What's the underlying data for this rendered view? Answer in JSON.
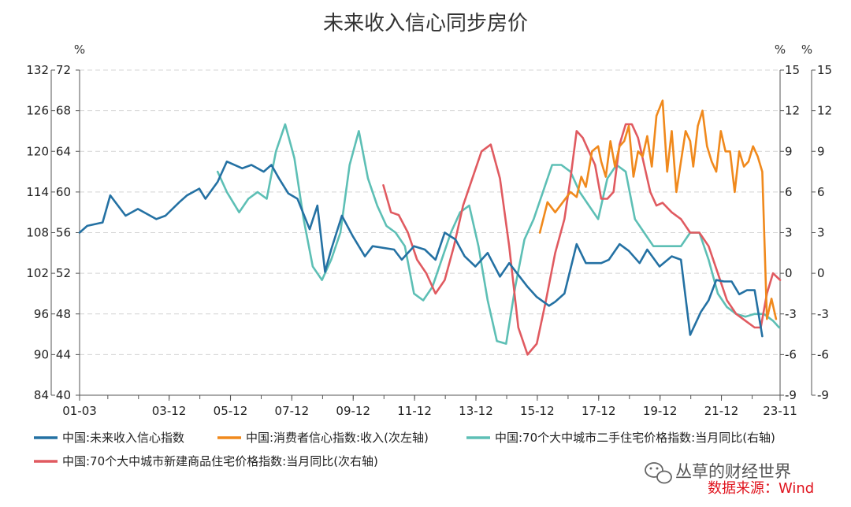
{
  "chart_data": {
    "type": "line",
    "title": "未来收入信心同步房价",
    "units": {
      "left_outer": "%",
      "right_inner": "%",
      "right_outer": "%"
    },
    "axes": {
      "left_outer": {
        "ticks": [
          "132",
          "126",
          "120",
          "114",
          "108",
          "102",
          "96",
          "90",
          "84"
        ],
        "range": [
          84,
          132
        ]
      },
      "left_inner": {
        "ticks": [
          "72",
          "68",
          "64",
          "60",
          "56",
          "52",
          "48",
          "44",
          "40"
        ],
        "range": [
          40,
          72
        ]
      },
      "right_inner": {
        "ticks": [
          "15",
          "12",
          "9",
          "6",
          "3",
          "0",
          "-3",
          "-6",
          "-9"
        ],
        "range": [
          -9,
          15
        ]
      },
      "right_outer": {
        "ticks": [
          "15",
          "12",
          "9",
          "6",
          "3",
          "0",
          "-3",
          "-6",
          "-9"
        ],
        "range": [
          -9,
          15
        ]
      }
    },
    "x_ticks": [
      "01-03",
      "03-12",
      "05-12",
      "07-12",
      "09-12",
      "11-12",
      "13-12",
      "15-12",
      "17-12",
      "19-12",
      "21-12",
      "23-11"
    ],
    "x_range": [
      2001.0,
      2023.83
    ],
    "grid": true,
    "legend_position": "bottom",
    "series": [
      {
        "name": "中国:未来收入信心指数",
        "color": "#2471a3",
        "axis": "left_outer",
        "x": [
          2001.0,
          2001.25,
          2001.75,
          2002.0,
          2002.5,
          2002.9,
          2003.5,
          2003.8,
          2004.25,
          2004.5,
          2004.9,
          2005.1,
          2005.5,
          2005.8,
          2006.3,
          2006.6,
          2007.0,
          2007.25,
          2007.5,
          2007.8,
          2008.1,
          2008.5,
          2008.75,
          2009.0,
          2009.2,
          2009.55,
          2009.9,
          2010.3,
          2010.55,
          2011.25,
          2011.5,
          2011.9,
          2012.25,
          2012.6,
          2012.9,
          2013.25,
          2013.55,
          2013.9,
          2014.3,
          2014.7,
          2015.0,
          2015.6,
          2015.9,
          2016.3,
          2016.5,
          2016.8,
          2017.2,
          2017.5,
          2018.0,
          2018.25,
          2018.6,
          2018.9,
          2019.25,
          2019.5,
          2019.9,
          2020.3,
          2020.6,
          2020.9,
          2021.25,
          2021.5,
          2021.75,
          2022.0,
          2022.25,
          2022.5,
          2022.75,
          2023.0,
          2023.25
        ],
        "values": [
          108,
          109,
          109.5,
          113.5,
          110.5,
          111.5,
          110,
          110.5,
          112.5,
          113.5,
          114.5,
          113,
          115.5,
          118.5,
          117.5,
          118,
          117,
          118,
          116,
          113.8,
          113,
          108.5,
          112,
          102.2,
          105.5,
          110.5,
          107.5,
          104.5,
          106,
          105.5,
          104,
          106,
          105.5,
          104,
          108,
          107,
          104.5,
          103,
          105,
          101.5,
          103.5,
          100,
          98.5,
          97.2,
          97.8,
          99,
          106.3,
          103.5,
          103.5,
          104,
          106.3,
          105.3,
          103.5,
          105.5,
          103,
          104.5,
          104,
          92.9,
          96.3,
          98,
          101,
          100.8,
          100.8,
          98.9,
          99.5,
          99.5,
          92.7
        ]
      },
      {
        "name": "中国:消费者信心指数:收入(次左轴)",
        "color": "#f0891c",
        "axis": "left_inner",
        "x": [
          2016.0,
          2016.25,
          2016.5,
          2016.75,
          2017.0,
          2017.2,
          2017.35,
          2017.5,
          2017.7,
          2017.9,
          2018.0,
          2018.15,
          2018.3,
          2018.45,
          2018.6,
          2018.75,
          2018.9,
          2019.05,
          2019.2,
          2019.35,
          2019.5,
          2019.65,
          2019.8,
          2020.0,
          2020.15,
          2020.3,
          2020.45,
          2020.6,
          2020.75,
          2020.9,
          2021.0,
          2021.15,
          2021.3,
          2021.45,
          2021.6,
          2021.75,
          2021.9,
          2022.05,
          2022.2,
          2022.35,
          2022.5,
          2022.65,
          2022.8,
          2022.95,
          2023.1,
          2023.25,
          2023.4,
          2023.55,
          2023.7
        ],
        "values": [
          56,
          59,
          58,
          59,
          60,
          59.5,
          61.5,
          60.5,
          64,
          64.5,
          63,
          61.5,
          65,
          62.5,
          64.5,
          65,
          66.5,
          61.5,
          64,
          63.5,
          65.5,
          62.5,
          67.5,
          69,
          62,
          66,
          60,
          63,
          66,
          65,
          62.5,
          66.5,
          68,
          64.5,
          63,
          62,
          66,
          64,
          64,
          60,
          64,
          62.5,
          63,
          64.5,
          63.5,
          62,
          47.5,
          49.5,
          47.5
        ]
      },
      {
        "name": "中国:70个大中城市二手住宅价格指数:当月同比(右轴)",
        "color": "#5dbfb5",
        "axis": "right_outer",
        "x": [
          2005.5,
          2005.8,
          2006.2,
          2006.5,
          2006.8,
          2007.1,
          2007.4,
          2007.7,
          2008.0,
          2008.3,
          2008.6,
          2008.9,
          2009.2,
          2009.5,
          2009.8,
          2010.1,
          2010.4,
          2010.7,
          2011.0,
          2011.3,
          2011.6,
          2011.9,
          2012.2,
          2012.5,
          2012.8,
          2013.1,
          2013.4,
          2013.7,
          2014.0,
          2014.3,
          2014.6,
          2014.9,
          2015.2,
          2015.5,
          2015.8,
          2016.1,
          2016.4,
          2016.7,
          2017.0,
          2017.3,
          2017.6,
          2017.9,
          2018.2,
          2018.5,
          2018.8,
          2019.1,
          2019.4,
          2019.7,
          2020.0,
          2020.3,
          2020.6,
          2020.9,
          2021.2,
          2021.5,
          2021.8,
          2022.1,
          2022.4,
          2022.7,
          2023.0,
          2023.3,
          2023.6,
          2023.8
        ],
        "values": [
          7.5,
          6,
          4.5,
          5.5,
          6,
          5.5,
          9,
          11,
          8.5,
          4,
          0.5,
          -0.5,
          1,
          3,
          8,
          10.5,
          7,
          5,
          3.5,
          3,
          2,
          -1.5,
          -2,
          -1,
          1,
          3,
          4.5,
          5,
          2,
          -2,
          -5,
          -5.2,
          -1,
          2.5,
          4,
          6,
          8,
          8,
          7.5,
          6,
          5,
          4,
          7,
          8,
          7.5,
          4,
          3,
          2,
          2,
          2,
          2,
          3,
          3,
          1,
          -1.5,
          -2.5,
          -3,
          -3.2,
          -3,
          -3,
          -3.5,
          -4
        ]
      },
      {
        "name": "中国:70个大中城市新建商品住宅价格指数:当月同比(次右轴)",
        "color": "#e05a60",
        "axis": "right_inner",
        "x": [
          2010.9,
          2011.15,
          2011.4,
          2011.7,
          2012.0,
          2012.3,
          2012.6,
          2012.9,
          2013.2,
          2013.5,
          2013.8,
          2014.1,
          2014.4,
          2014.7,
          2015.0,
          2015.3,
          2015.6,
          2015.9,
          2016.2,
          2016.5,
          2016.8,
          2017.0,
          2017.2,
          2017.4,
          2017.6,
          2017.8,
          2018.0,
          2018.2,
          2018.4,
          2018.6,
          2018.8,
          2019.0,
          2019.2,
          2019.4,
          2019.6,
          2019.8,
          2020.0,
          2020.3,
          2020.6,
          2020.9,
          2021.2,
          2021.5,
          2021.8,
          2022.1,
          2022.4,
          2022.7,
          2023.0,
          2023.2,
          2023.4,
          2023.6,
          2023.83
        ],
        "values": [
          6.5,
          4.5,
          4.3,
          3,
          1,
          0,
          -1.5,
          -0.5,
          2,
          5,
          7,
          9,
          9.5,
          7,
          2,
          -4,
          -6,
          -5.2,
          -2,
          1.5,
          4,
          7,
          10.5,
          10,
          9,
          8,
          5.5,
          5.5,
          6,
          9.5,
          11,
          11,
          10,
          8,
          6,
          5,
          5.2,
          4.5,
          4,
          3,
          3,
          2,
          0,
          -2,
          -3,
          -3.5,
          -4,
          -4,
          -1.5,
          0,
          -0.5
        ]
      }
    ],
    "watermark": "丛草的财经世界",
    "source": "数据来源：Wind"
  }
}
